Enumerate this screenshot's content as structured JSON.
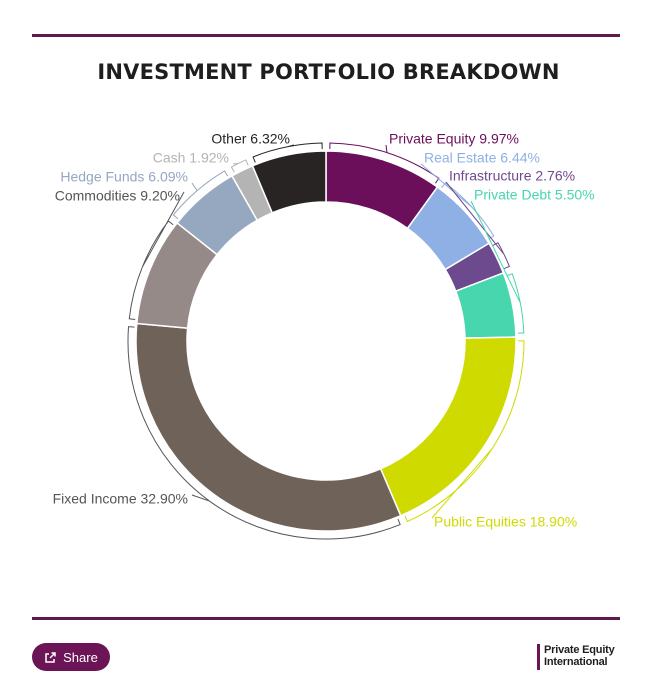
{
  "chart_data": {
    "type": "pie",
    "title": "INVESTMENT PORTFOLIO BREAKDOWN",
    "donut": true,
    "legend": "callout-labels",
    "slices": [
      {
        "label": "Private Equity 9.97%",
        "name": "Private Equity",
        "value": 9.97,
        "color": "#6b0f5a"
      },
      {
        "label": "Real Estate 6.44%",
        "name": "Real Estate",
        "value": 6.44,
        "color": "#8eb0e4"
      },
      {
        "label": "Infrastructure 2.76%",
        "name": "Infrastructure",
        "value": 2.76,
        "color": "#6d4a8e"
      },
      {
        "label": "Private Debt 5.50%",
        "name": "Private Debt",
        "value": 5.5,
        "color": "#47d6ad"
      },
      {
        "label": "Public Equities 18.90%",
        "name": "Public Equities",
        "value": 18.9,
        "color": "#cfdb00"
      },
      {
        "label": "Fixed Income 32.90%",
        "name": "Fixed Income",
        "value": 32.9,
        "color": "#6e6259"
      },
      {
        "label": "Commodities 9.20%",
        "name": "Commodities",
        "value": 9.2,
        "color": "#958a88"
      },
      {
        "label": "Hedge Funds 6.09%",
        "name": "Hedge Funds",
        "value": 6.09,
        "color": "#96a7c0"
      },
      {
        "label": "Cash 1.92%",
        "name": "Cash",
        "value": 1.92,
        "color": "#b4b4b4"
      },
      {
        "label": "Other 6.32%",
        "name": "Other",
        "value": 6.32,
        "color": "#282424"
      }
    ]
  },
  "footer": {
    "share_label": "Share",
    "share_icon": "share-icon",
    "brand_line1": "Private Equity",
    "brand_line2": "International"
  },
  "colors": {
    "accent": "#6b1456",
    "rule": "#5e1a4e",
    "label_text": "#555555"
  }
}
